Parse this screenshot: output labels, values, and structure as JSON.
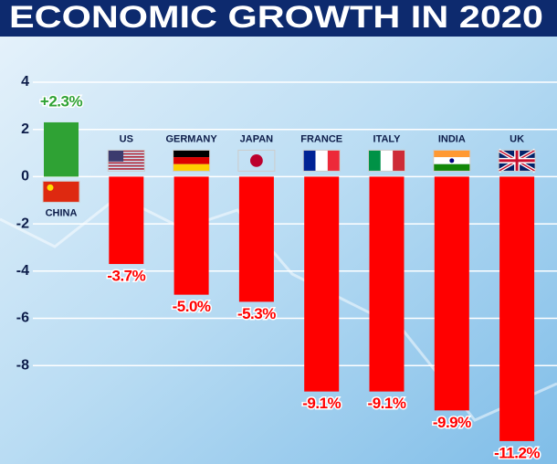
{
  "chart_data": {
    "type": "bar",
    "title": "ECONOMIC GROWTH IN 2020",
    "categories": [
      "CHINA",
      "US",
      "GERMANY",
      "JAPAN",
      "FRANCE",
      "ITALY",
      "INDIA",
      "UK"
    ],
    "values": [
      2.3,
      -3.7,
      -5.0,
      -5.3,
      -9.1,
      -9.1,
      -9.9,
      -11.2
    ],
    "value_labels": [
      "+2.3%",
      "-3.7%",
      "-5.0%",
      "-5.3%",
      "-9.1%",
      "-9.1%",
      "-9.9%",
      "-11.2%"
    ],
    "colors": [
      "#2fa234",
      "#ff0000",
      "#ff0000",
      "#ff0000",
      "#ff0000",
      "#ff0000",
      "#ff0000",
      "#ff0000"
    ],
    "ylim": [
      -12,
      4
    ],
    "yticks": [
      4,
      2,
      0,
      -2,
      -4,
      -6,
      -8
    ],
    "grid": true
  }
}
